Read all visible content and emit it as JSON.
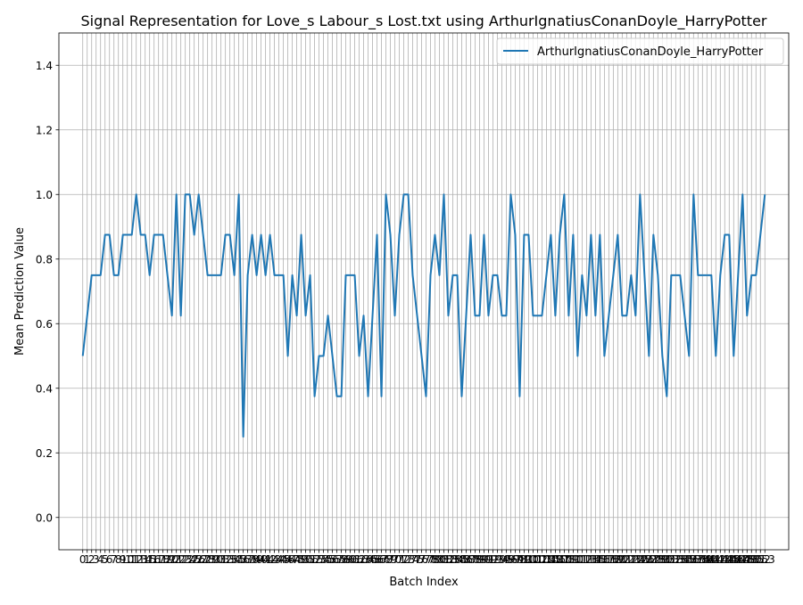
{
  "chart_data": {
    "type": "line",
    "title": "Signal Representation for Love_s Labour_s Lost.txt using ArthurIgnatiusConanDoyle_HarryPotter",
    "xlabel": "Batch Index",
    "ylabel": "Mean Prediction Value",
    "xlim": [
      -5.35,
      158.35
    ],
    "ylim": [
      -0.1,
      1.5
    ],
    "yticks": [
      "0.0",
      "0.2",
      "0.4",
      "0.6",
      "0.8",
      "1.0",
      "1.2",
      "1.4"
    ],
    "ytick_values": [
      0.0,
      0.2,
      0.4,
      0.6,
      0.8,
      1.0,
      1.2,
      1.4
    ],
    "x_tick_count": 154,
    "grid": true,
    "legend_position": "top-right",
    "series": [
      {
        "name": "ArthurIgnatiusConanDoyle_HarryPotter",
        "color": "#1f77b4",
        "values": [
          0.5,
          0.625,
          0.75,
          0.75,
          0.75,
          0.875,
          0.875,
          0.75,
          0.75,
          0.875,
          0.875,
          0.875,
          1.0,
          0.875,
          0.875,
          0.75,
          0.875,
          0.875,
          0.875,
          0.75,
          0.625,
          1.0,
          0.625,
          1.0,
          1.0,
          0.875,
          1.0,
          0.875,
          0.75,
          0.75,
          0.75,
          0.75,
          0.875,
          0.875,
          0.75,
          1.0,
          0.25,
          0.75,
          0.875,
          0.75,
          0.875,
          0.75,
          0.875,
          0.75,
          0.75,
          0.75,
          0.5,
          0.75,
          0.625,
          0.875,
          0.625,
          0.75,
          0.375,
          0.5,
          0.5,
          0.625,
          0.5,
          0.375,
          0.375,
          0.75,
          0.75,
          0.75,
          0.5,
          0.625,
          0.375,
          0.625,
          0.875,
          0.375,
          1.0,
          0.875,
          0.625,
          0.875,
          1.0,
          1.0,
          0.75,
          0.625,
          0.5,
          0.375,
          0.75,
          0.875,
          0.75,
          1.0,
          0.625,
          0.75,
          0.75,
          0.375,
          0.625,
          0.875,
          0.625,
          0.625,
          0.875,
          0.625,
          0.75,
          0.75,
          0.625,
          0.625,
          1.0,
          0.875,
          0.375,
          0.875,
          0.875,
          0.625,
          0.625,
          0.625,
          0.75,
          0.875,
          0.625,
          0.875,
          1.0,
          0.625,
          0.875,
          0.5,
          0.75,
          0.625,
          0.875,
          0.625,
          0.875,
          0.5,
          0.625,
          0.75,
          0.875,
          0.625,
          0.625,
          0.75,
          0.625,
          1.0,
          0.75,
          0.5,
          0.875,
          0.75,
          0.5,
          0.375,
          0.75,
          0.75,
          0.75,
          0.625,
          0.5,
          1.0,
          0.75,
          0.75,
          0.75,
          0.75,
          0.5,
          0.75,
          0.875,
          0.875,
          0.5,
          0.75,
          1.0,
          0.625,
          0.75,
          0.75,
          0.875,
          1.0
        ]
      }
    ]
  }
}
